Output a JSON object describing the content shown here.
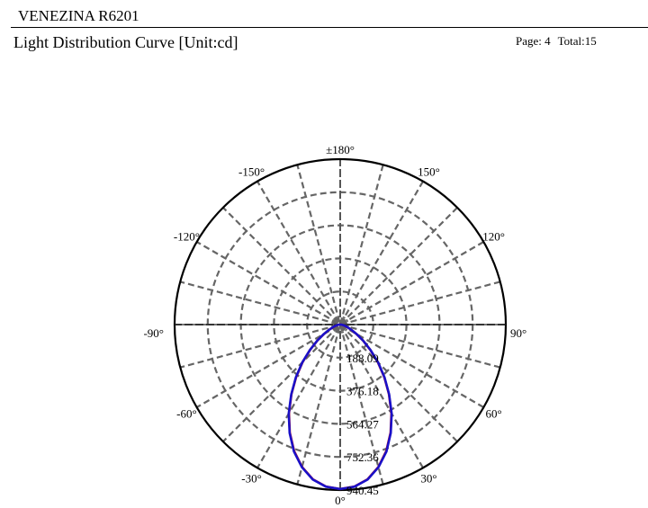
{
  "header": {
    "product": "VENEZINA R6201",
    "title": "Light Distribution Curve [Unit:cd]",
    "page_label": "Page: 4",
    "total_label": "Total:15"
  },
  "chart_data": {
    "type": "polar",
    "title": "Light Distribution Curve [Unit:cd]",
    "radial_max": 940.45,
    "radial_ticks": [
      188.09,
      376.18,
      564.27,
      752.36,
      940.45
    ],
    "radial_tick_labels": [
      "188.09",
      "376.18",
      "564.27",
      "752.36",
      "940.45"
    ],
    "angle_labels": [
      {
        "angle": 0,
        "label": "0°"
      },
      {
        "angle": 30,
        "label": "30°"
      },
      {
        "angle": 60,
        "label": "60°"
      },
      {
        "angle": 90,
        "label": "90°"
      },
      {
        "angle": 120,
        "label": "120°"
      },
      {
        "angle": 150,
        "label": "150°"
      },
      {
        "angle": 180,
        "label": "±180°"
      },
      {
        "angle": -150,
        "label": "-150°"
      },
      {
        "angle": -120,
        "label": "-120°"
      },
      {
        "angle": -90,
        "label": "-90°"
      },
      {
        "angle": -60,
        "label": "-60°"
      },
      {
        "angle": -30,
        "label": "-30°"
      }
    ],
    "spoke_step_deg": 15,
    "grid": true,
    "series": [
      {
        "color": "#1a10c8",
        "angles": [
          0,
          5,
          10,
          15,
          20,
          25,
          30,
          35,
          40,
          45,
          50,
          55,
          60,
          65,
          70,
          75,
          80,
          85,
          90
        ],
        "values": [
          935,
          925,
          895,
          840,
          768,
          680,
          585,
          485,
          392,
          305,
          225,
          160,
          108,
          70,
          44,
          28,
          16,
          8,
          0
        ]
      },
      {
        "color": "#c01020",
        "angles": [
          0,
          5,
          10,
          15,
          20,
          25,
          30,
          35,
          40,
          45,
          50,
          55,
          60,
          65,
          70,
          75,
          80,
          85,
          90
        ],
        "values": [
          935,
          924,
          893,
          838,
          765,
          677,
          582,
          482,
          389,
          302,
          222,
          157,
          105,
          68,
          42,
          26,
          15,
          7,
          0
        ]
      }
    ]
  }
}
